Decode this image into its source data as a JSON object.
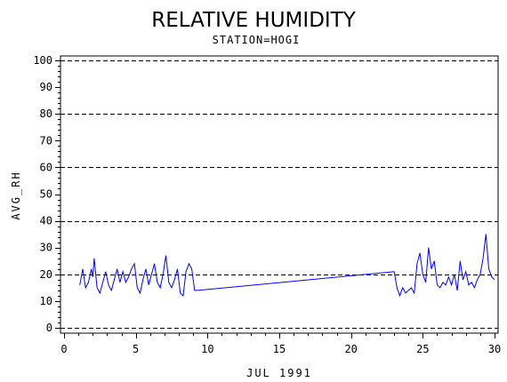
{
  "chart_data": {
    "type": "line",
    "title": "RELATIVE HUMIDITY",
    "subtitle": "STATION=HOGI",
    "xlabel": "JUL 1991",
    "ylabel": "AVG_RH",
    "xlim": [
      0,
      30
    ],
    "ylim": [
      0,
      100
    ],
    "x_ticks": [
      0,
      5,
      10,
      15,
      20,
      25,
      30
    ],
    "y_ticks": [
      0,
      10,
      20,
      30,
      40,
      50,
      60,
      70,
      80,
      90,
      100
    ],
    "x_tick_labels": [
      "0",
      "5",
      "10",
      "15",
      "20",
      "25",
      "30"
    ],
    "y_tick_labels": [
      "0",
      "10",
      "20",
      "30",
      "40",
      "50",
      "60",
      "70",
      "80",
      "90",
      "100"
    ],
    "grid_y_dashed": [
      20,
      40,
      60,
      80,
      100
    ],
    "line_color": "#0000ff",
    "series": [
      {
        "x": [
          1.1,
          1.3,
          1.5,
          1.7,
          1.9,
          2.0,
          2.1,
          2.3,
          2.5,
          2.7,
          2.9,
          3.1,
          3.3,
          3.5,
          3.7,
          3.9,
          4.1,
          4.3,
          4.5,
          4.7,
          4.9,
          5.1,
          5.3,
          5.5,
          5.7,
          5.9,
          6.1,
          6.3,
          6.5,
          6.7,
          6.9,
          7.1,
          7.3,
          7.5,
          7.7,
          7.9,
          8.1,
          8.3,
          8.5,
          8.7,
          8.9,
          9.1,
          9.3,
          23.0,
          23.2,
          23.4,
          23.6,
          23.8,
          24.0,
          24.2,
          24.4,
          24.6,
          24.8,
          25.0,
          25.2,
          25.4,
          25.6,
          25.8,
          26.0,
          26.2,
          26.4,
          26.6,
          26.8,
          27.0,
          27.2,
          27.4,
          27.6,
          27.8,
          28.0,
          28.2,
          28.4,
          28.6,
          28.8,
          29.0,
          29.2,
          29.4,
          29.6,
          29.8,
          30.0
        ],
        "y": [
          16,
          22,
          15,
          17,
          22,
          19,
          26,
          15,
          13,
          17,
          21,
          16,
          14,
          18,
          22,
          17,
          21,
          17,
          19,
          22,
          24,
          15,
          13,
          18,
          22,
          16,
          20,
          24,
          17,
          15,
          20,
          27,
          17,
          15,
          18,
          22,
          13,
          12,
          21,
          24,
          22,
          14,
          14,
          21,
          15,
          12,
          15,
          13,
          14,
          15,
          13,
          24,
          28,
          20,
          17,
          30,
          22,
          25,
          16,
          15,
          17,
          16,
          19,
          16,
          20,
          14,
          25,
          18,
          21,
          16,
          17,
          15,
          18,
          20,
          26,
          35,
          22,
          19,
          18
        ]
      }
    ]
  }
}
